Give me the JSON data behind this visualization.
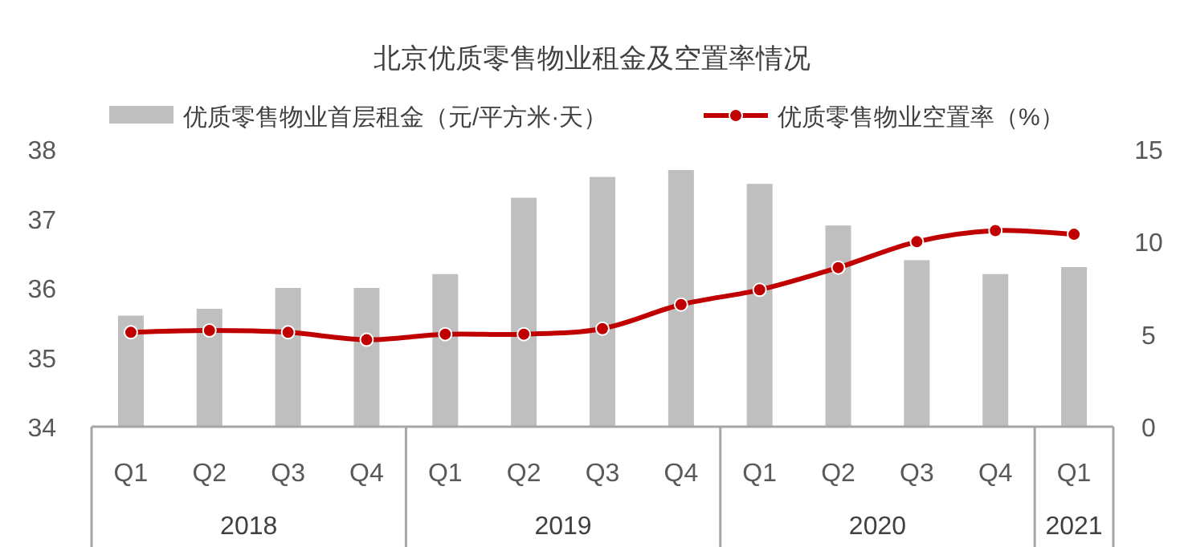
{
  "chart_data": {
    "type": "bar",
    "title": "北京优质零售物业租金及空置率情况",
    "categories": [
      "Q1",
      "Q2",
      "Q3",
      "Q4",
      "Q1",
      "Q2",
      "Q3",
      "Q4",
      "Q1",
      "Q2",
      "Q3",
      "Q4",
      "Q1"
    ],
    "series": [
      {
        "name": "优质零售物业首层租金（元/平方米·天）",
        "color": "#bfbfbf",
        "values": [
          35.6,
          35.7,
          36.0,
          36.0,
          36.2,
          37.3,
          37.6,
          37.7,
          37.5,
          36.9,
          36.4,
          36.2,
          36.3
        ]
      },
      {
        "name": "优质零售物业空置率（%）",
        "type": "line",
        "axis": "y2",
        "color": "#c00000",
        "marker": "circle",
        "values": [
          5.1,
          5.2,
          5.1,
          4.7,
          5.0,
          5.0,
          5.3,
          6.6,
          7.4,
          8.6,
          10.0,
          10.6,
          10.4
        ]
      }
    ],
    "ylim": [
      34,
      38
    ],
    "yticks": [
      34,
      35,
      36,
      37,
      38
    ],
    "y2lim": [
      0,
      15
    ],
    "y2ticks": [
      0,
      5,
      10,
      15
    ],
    "annotations": [
      "2018",
      "2019",
      "2020",
      "2021"
    ],
    "legend": "top",
    "grid": false
  }
}
